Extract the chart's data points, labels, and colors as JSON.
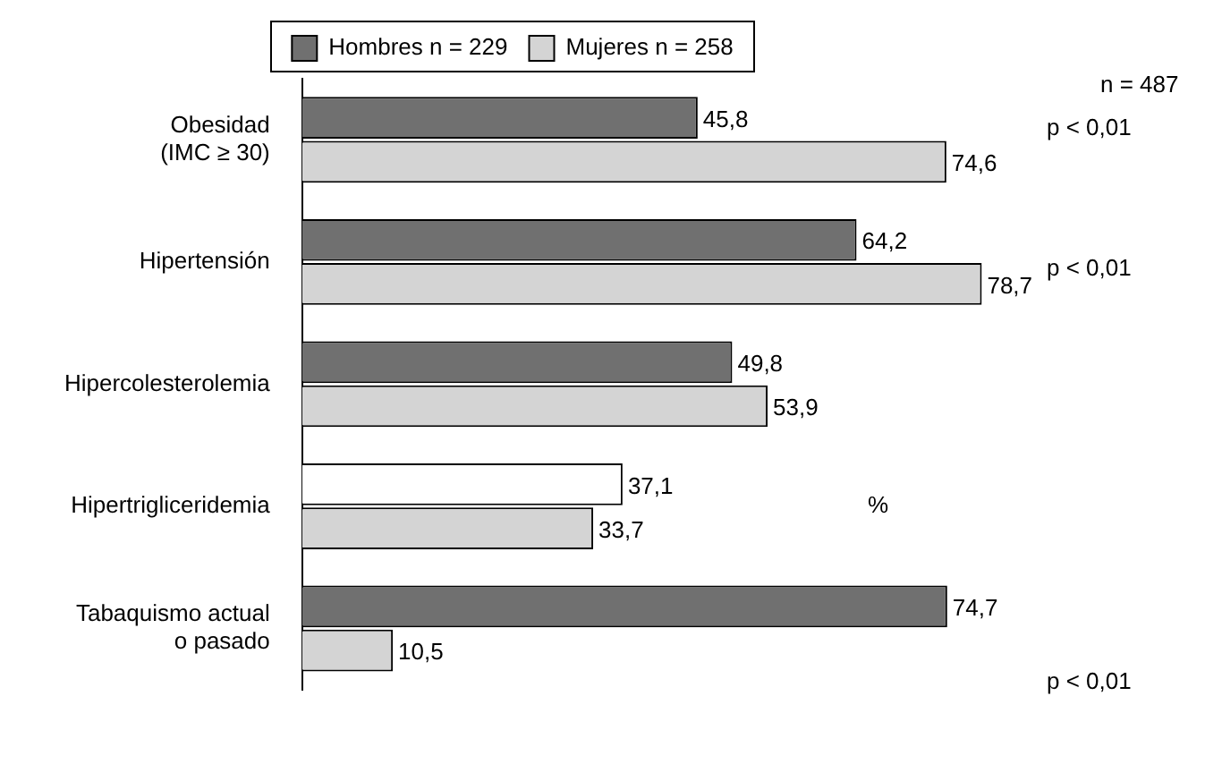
{
  "chart_data": {
    "type": "bar",
    "orientation": "horizontal",
    "categories": [
      "Obesidad\n(IMC ≥ 30)",
      "Hipertensión",
      "Hipercolesterolemia",
      "Hipertrigliceridemia",
      "Tabaquismo actual\no pasado"
    ],
    "series": [
      {
        "name": "Hombres n = 229",
        "color": "#707070",
        "colors": [
          "#707070",
          "#707070",
          "#707070",
          "#ffffff",
          "#707070"
        ],
        "values": [
          45.8,
          64.2,
          49.8,
          37.1,
          74.7
        ],
        "value_labels": [
          "45,8",
          "64,2",
          "49,8",
          "37,1",
          "74,7"
        ]
      },
      {
        "name": "Mujeres n = 258",
        "color": "#d4d4d4",
        "values": [
          74.6,
          78.7,
          53.9,
          33.7,
          10.5
        ],
        "value_labels": [
          "74,6",
          "78,7",
          "53,9",
          "33,7",
          "10,5"
        ]
      }
    ],
    "legend": "top",
    "grid": false,
    "tick_labels": "y",
    "annotations": [
      "n = 487",
      "p < 0,01",
      "p < 0,01",
      "%",
      "p < 0,01"
    ]
  }
}
